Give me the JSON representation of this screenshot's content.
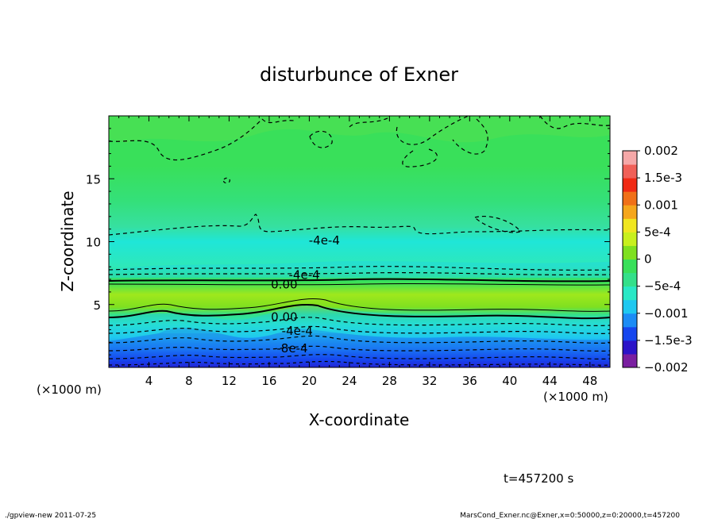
{
  "chart_data": {
    "type": "heatmap",
    "title": "disturbunce of Exner",
    "xlabel": "X-coordinate",
    "ylabel": "Z-coordinate",
    "x_unit": "(×1000 m)",
    "y_unit": "(×1000 m)",
    "xlim": [
      0,
      50
    ],
    "ylim": [
      0,
      20
    ],
    "x_ticks": [
      4,
      8,
      12,
      16,
      20,
      24,
      28,
      32,
      36,
      40,
      44,
      48
    ],
    "x_tick_labels": [
      "4",
      "8",
      "12",
      "16",
      "20",
      "24",
      "28",
      "32",
      "36",
      "40",
      "44",
      "48"
    ],
    "y_ticks": [
      5,
      10,
      15
    ],
    "y_tick_labels": [
      "5",
      "10",
      "15"
    ],
    "colorbar": {
      "levels": [
        -0.002,
        -0.0015,
        -0.001,
        -0.0005,
        0,
        0.0005,
        0.001,
        0.0015,
        0.002
      ],
      "labels": [
        "0.002",
        "1.5e-3",
        "0.001",
        "5e-4",
        "0",
        "−5e-4",
        "−0.001",
        "−1.5e-3",
        "−0.002"
      ],
      "colors": [
        "#7a1fa0",
        "#2b14c8",
        "#1646ee",
        "#1c8cf5",
        "#1fc8f0",
        "#2ae8c6",
        "#34e08a",
        "#39e05a",
        "#7fe020",
        "#c8f01e",
        "#f0e620",
        "#f5a61c",
        "#f07018",
        "#f02a14",
        "#f06058",
        "#f5a8a8"
      ]
    },
    "contour_labels": [
      {
        "text": "-4e-4",
        "x": 21.5,
        "y": 10.1
      },
      {
        "text": "-4e-4",
        "x": 19.5,
        "y": 7.35
      },
      {
        "text": "0.00",
        "x": 17.5,
        "y": 6.6
      },
      {
        "text": "0.00",
        "x": 17.5,
        "y": 4.0
      },
      {
        "text": "-4e-4",
        "x": 18.8,
        "y": 2.9
      },
      {
        "text": "-8e-4",
        "x": 18.3,
        "y": 1.5
      }
    ],
    "grid": false,
    "legend": "colorbar-right"
  },
  "footer": {
    "time": "t=457200 s",
    "left_note": "./gpview-new  2011-07-25",
    "right_note": "MarsCond_Exner.nc@Exner,x=0:50000,z=0:20000,t=457200"
  }
}
